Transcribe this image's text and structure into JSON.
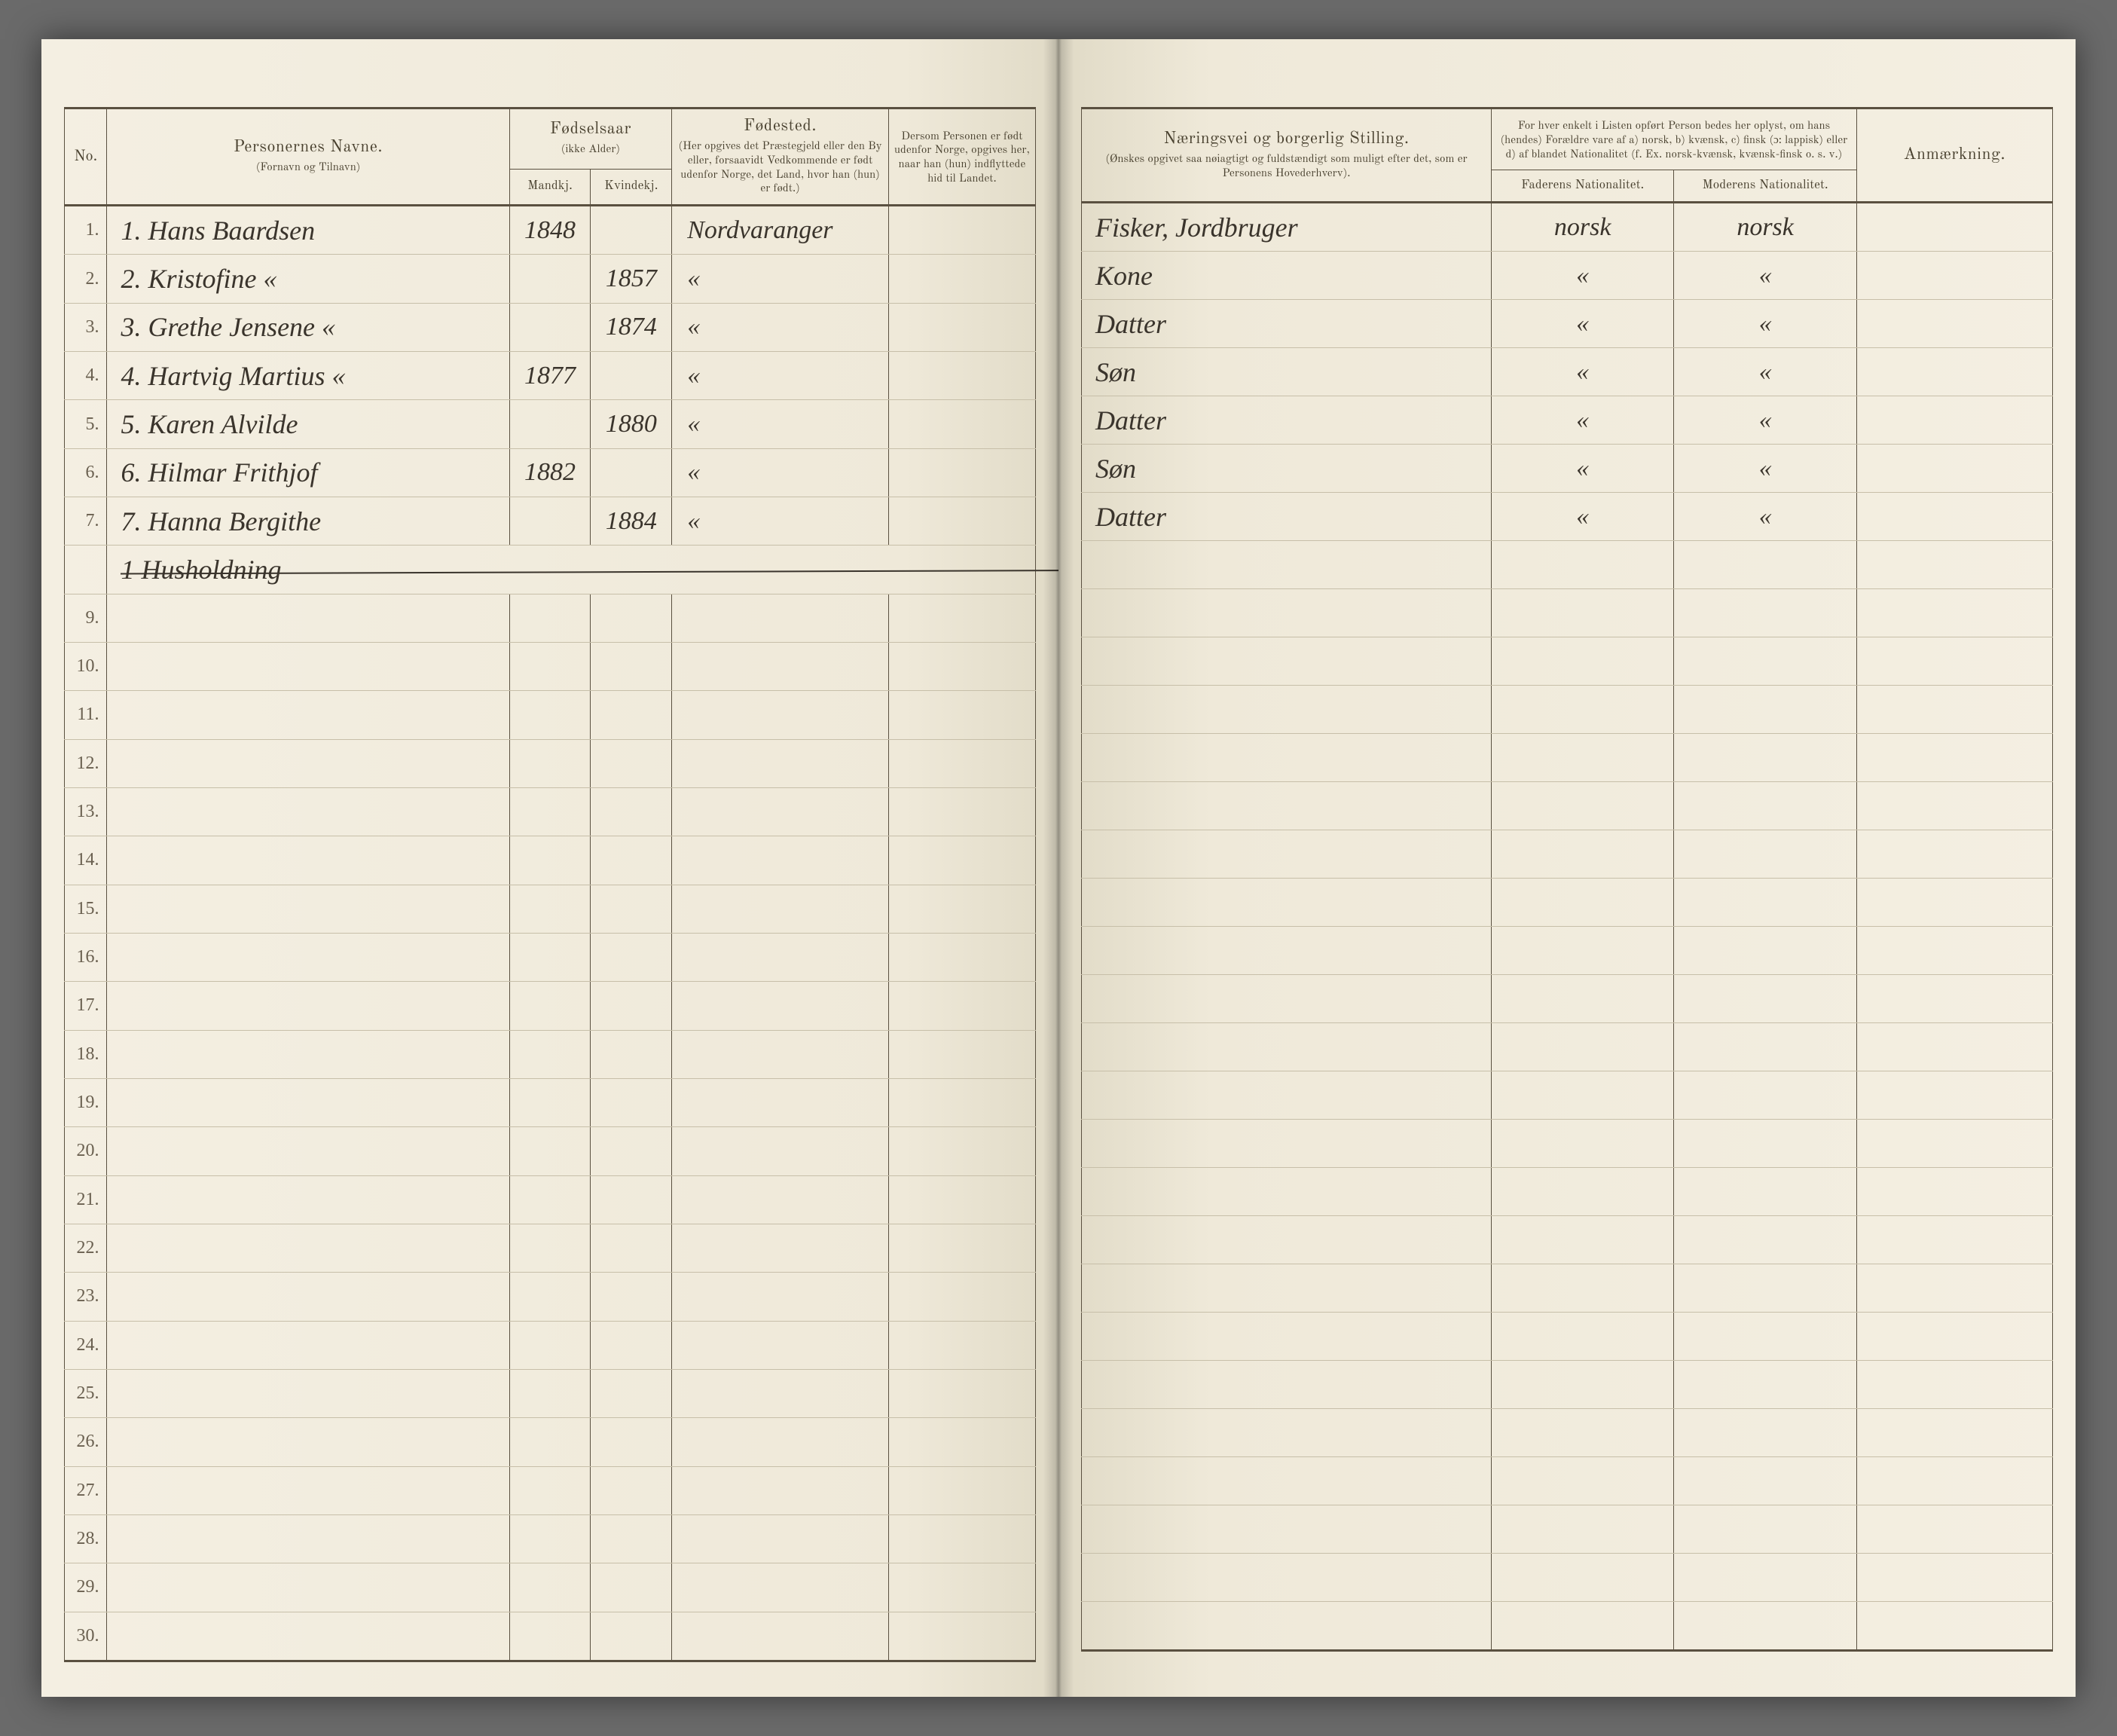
{
  "colors": {
    "page_bg": "#f2ede0",
    "ink": "#3a342c",
    "rule": "#5a5040",
    "faint_rule": "#c7bfa9",
    "surround": "#6a6a6a"
  },
  "headers": {
    "no": "No.",
    "name_title": "Personernes Navne.",
    "name_sub": "(Fornavn og Tilnavn)",
    "birthyear_title": "Fødselsaar",
    "birthyear_sub": "(ikke Alder)",
    "male": "Mandkj.",
    "female": "Kvindekj.",
    "birthplace_title": "Fødested.",
    "birthplace_sub": "(Her opgives det Præstegjeld eller den By eller, forsaavidt Vedkommende er født udenfor Norge, det Land, hvor han (hun) er født.)",
    "foreign_title": "Dersom Personen er født udenfor Norge, opgives her, naar han (hun) indflyttede hid til Landet.",
    "occupation_title": "Næringsvei og borgerlig Stilling.",
    "occupation_sub": "(Ønskes opgivet saa nøiagtigt og fuldstændigt som muligt efter det, som er Personens Hovederhverv).",
    "nationality_title": "For hver enkelt i Listen opført Person bedes her oplyst, om hans (hendes) Forældre vare af a) norsk, b) kvænsk, c) finsk (ɔ: lappisk) eller d) af blandet Nationalitet (f. Ex. norsk-kvænsk, kvænsk-finsk o. s. v.)",
    "father_nat": "Faderens Nationalitet.",
    "mother_nat": "Moderens Nationalitet.",
    "remark": "Anmærkning."
  },
  "rows": [
    {
      "n": "1",
      "idx": "1.",
      "name": "Hans Baardsen",
      "ym": "1848",
      "yf": "",
      "place": "Nordvaranger",
      "occ": "Fisker, Jordbruger",
      "fa": "norsk",
      "mo": "norsk"
    },
    {
      "n": "2",
      "idx": "2.",
      "name": "Kristofine                «",
      "ym": "",
      "yf": "1857",
      "place": "«",
      "occ": "Kone",
      "fa": "«",
      "mo": "«"
    },
    {
      "n": "3",
      "idx": "3.",
      "name": "Grethe Jensene      «",
      "ym": "",
      "yf": "1874",
      "place": "«",
      "occ": "Datter",
      "fa": "«",
      "mo": "«"
    },
    {
      "n": "4",
      "idx": "4.",
      "name": "Hartvig Martius     «",
      "ym": "1877",
      "yf": "",
      "place": "«",
      "occ": "Søn",
      "fa": "«",
      "mo": "«"
    },
    {
      "n": "5",
      "idx": "5.",
      "name": "Karen Alvilde",
      "ym": "",
      "yf": "1880",
      "place": "«",
      "occ": "Datter",
      "fa": "«",
      "mo": "«"
    },
    {
      "n": "6",
      "idx": "6.",
      "name": "Hilmar Frithjof",
      "ym": "1882",
      "yf": "",
      "place": "«",
      "occ": "Søn",
      "fa": "«",
      "mo": "«"
    },
    {
      "n": "7",
      "idx": "7.",
      "name": "Hanna Bergithe",
      "ym": "",
      "yf": "1884",
      "place": "«",
      "occ": "Datter",
      "fa": "«",
      "mo": "«"
    }
  ],
  "summary_row": {
    "idx": "",
    "name": "1 Husholdning"
  },
  "row_count": 30
}
